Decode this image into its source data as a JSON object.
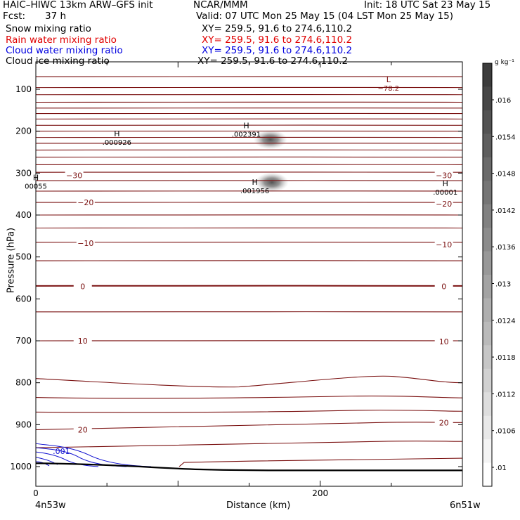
{
  "header": {
    "title_left": "HAIC–HIWC 13km ARW–GFS init",
    "title_center": "NCAR/MMM",
    "init": "Init: 18 UTC Sat 23 May 15",
    "fcst_label": "Fcst:",
    "fcst_value": "37 h",
    "valid": "Valid: 07 UTC Mon 25 May 15 (04 LST Mon 25 May 15)"
  },
  "fields": [
    {
      "name": "Snow mixing ratio",
      "xy": "XY= 259.5, 91.6 to 274.6,110.2",
      "color": "#000000"
    },
    {
      "name": "Rain water mixing ratio",
      "xy": "XY= 259.5, 91.6 to 274.6,110.2",
      "color": "#e00000"
    },
    {
      "name": "Cloud water mixing ratio",
      "xy": "XY= 259.5, 91.6 to 274.6,110.2",
      "color": "#0000e0"
    },
    {
      "name": "Cloud ice mixing ratio",
      "xy": "XY= 259.5, 91.6 to 274.6,110.2",
      "color": "#000000"
    }
  ],
  "chart_data": {
    "type": "heatmap",
    "xlabel": "Distance (km)",
    "ylabel": "Pressure (hPa)",
    "xlim": [
      0,
      300
    ],
    "ylim": [
      1050,
      50
    ],
    "x_ticks": [
      0,
      200
    ],
    "y_ticks": [
      100,
      200,
      300,
      400,
      500,
      600,
      700,
      800,
      900,
      1000
    ],
    "x_endpoint_labels": [
      "4n53w",
      "6n51w"
    ],
    "colorbar": {
      "unit": "g kg⁻¹",
      "ticks": [
        ".016",
        ".0154",
        ".0148",
        ".0142",
        ".0136",
        ".013",
        ".0124",
        ".0118",
        ".0112",
        ".0106",
        ".01"
      ]
    },
    "temperature_labels": [
      {
        "text": "−30",
        "x": 27,
        "p": 305
      },
      {
        "text": "−30",
        "x": 287,
        "p": 305
      },
      {
        "text": "−20",
        "x": 35,
        "p": 370
      },
      {
        "text": "−20",
        "x": 287,
        "p": 373
      },
      {
        "text": "−10",
        "x": 35,
        "p": 467
      },
      {
        "text": "−10",
        "x": 287,
        "p": 470
      },
      {
        "text": "0",
        "x": 33,
        "p": 570
      },
      {
        "text": "0",
        "x": 287,
        "p": 570
      },
      {
        "text": "10",
        "x": 33,
        "p": 700
      },
      {
        "text": "10",
        "x": 287,
        "p": 702
      },
      {
        "text": "20",
        "x": 33,
        "p": 912
      },
      {
        "text": "20",
        "x": 287,
        "p": 895
      }
    ],
    "extrema": [
      {
        "letter": "L",
        "value": "−78.2",
        "x": 248,
        "p": 88
      },
      {
        "letter": "H",
        "value": ".002391",
        "x": 148,
        "p": 198
      },
      {
        "letter": "H",
        "value": ".000926",
        "x": 57,
        "p": 217
      },
      {
        "letter": "H",
        "value": ".001956",
        "x": 154,
        "p": 333
      },
      {
        "letter": "H",
        "value": "00055",
        "x": 0,
        "p": 322
      },
      {
        "letter": "H",
        "value": ".00001",
        "x": 288,
        "p": 336
      }
    ],
    "cloud_water_label": {
      "text": ".001",
      "x": 18,
      "p": 970
    },
    "mixing_ratio_blobs": [
      {
        "x": 165,
        "p": 220,
        "value": 0.0154
      },
      {
        "x": 166,
        "p": 322,
        "value": 0.0148
      }
    ]
  }
}
